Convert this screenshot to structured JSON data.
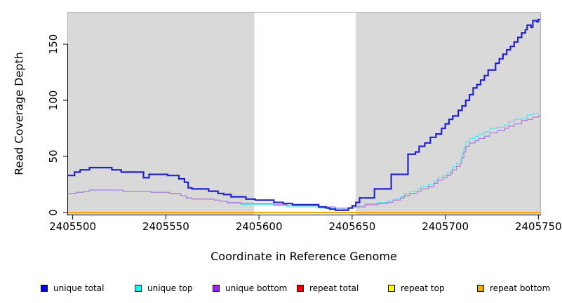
{
  "chart_data": {
    "type": "line",
    "step": true,
    "title": "",
    "xlabel": "Coordinate in Reference Genome",
    "ylabel": "Read Coverage Depth",
    "xlim": [
      2405497.5,
      2405751
    ],
    "ylim": [
      0,
      178
    ],
    "x_ticks": [
      2405500,
      2405550,
      2405600,
      2405650,
      2405700,
      2405750
    ],
    "x_tick_labels": [
      "2405500",
      "2405550",
      "2405600",
      "2405650",
      "2405700",
      "2405750"
    ],
    "y_ticks": [
      0,
      50,
      100,
      150
    ],
    "y_tick_labels": [
      "0",
      "50",
      "100",
      "150"
    ],
    "grid": false,
    "legend_position": "bottom",
    "panel_bg": "#d9d9d9",
    "panel_border": "#b3b3b3",
    "axis_color": "#000000",
    "highlight_band": {
      "x0": 2405597.5,
      "x1": 2405652,
      "color": "#ffffff"
    },
    "draw_order": [
      3,
      4,
      5,
      1,
      2,
      0
    ],
    "series": [
      {
        "name": "unique total",
        "color": "#2323cd",
        "width": 2.2,
        "points": [
          [
            2405497.5,
            33
          ],
          [
            2405501,
            36
          ],
          [
            2405504,
            38
          ],
          [
            2405509,
            40
          ],
          [
            2405521,
            38
          ],
          [
            2405526,
            36
          ],
          [
            2405538,
            31
          ],
          [
            2405541,
            34
          ],
          [
            2405551,
            33
          ],
          [
            2405557,
            30
          ],
          [
            2405560,
            27
          ],
          [
            2405562,
            22
          ],
          [
            2405564,
            21
          ],
          [
            2405573,
            19
          ],
          [
            2405578,
            17
          ],
          [
            2405581,
            16
          ],
          [
            2405585,
            14
          ],
          [
            2405593,
            12
          ],
          [
            2405598,
            11
          ],
          [
            2405608,
            9
          ],
          [
            2405613,
            8
          ],
          [
            2405618,
            7
          ],
          [
            2405632,
            5
          ],
          [
            2405636,
            4
          ],
          [
            2405638,
            3
          ],
          [
            2405641,
            2
          ],
          [
            2405648,
            4
          ],
          [
            2405650,
            6
          ],
          [
            2405652,
            9
          ],
          [
            2405654,
            13
          ],
          [
            2405662,
            21
          ],
          [
            2405671,
            34
          ],
          [
            2405680,
            52
          ],
          [
            2405684,
            54
          ],
          [
            2405686,
            59
          ],
          [
            2405689,
            62
          ],
          [
            2405692,
            67
          ],
          [
            2405695,
            70
          ],
          [
            2405698,
            75
          ],
          [
            2405700,
            79
          ],
          [
            2405702,
            83
          ],
          [
            2405704,
            86
          ],
          [
            2405707,
            91
          ],
          [
            2405709,
            95
          ],
          [
            2405711,
            100
          ],
          [
            2405713,
            105
          ],
          [
            2405715,
            111
          ],
          [
            2405717,
            114
          ],
          [
            2405719,
            118
          ],
          [
            2405721,
            122
          ],
          [
            2405723,
            127
          ],
          [
            2405727,
            133
          ],
          [
            2405729,
            137
          ],
          [
            2405731,
            141
          ],
          [
            2405733,
            145
          ],
          [
            2405735,
            148
          ],
          [
            2405737,
            152
          ],
          [
            2405739,
            156
          ],
          [
            2405741,
            160
          ],
          [
            2405743,
            163
          ],
          [
            2405744,
            167
          ],
          [
            2405746,
            165
          ],
          [
            2405747,
            171
          ],
          [
            2405749,
            170
          ],
          [
            2405750,
            172
          ]
        ]
      },
      {
        "name": "unique top",
        "color": "#5fe4e8",
        "width": 1.3,
        "points": [
          [
            2405497.5,
            17
          ],
          [
            2405502,
            18
          ],
          [
            2405506,
            19
          ],
          [
            2405509,
            20
          ],
          [
            2405527,
            19
          ],
          [
            2405542,
            18
          ],
          [
            2405552,
            17
          ],
          [
            2405558,
            15
          ],
          [
            2405561,
            13
          ],
          [
            2405564,
            12
          ],
          [
            2405576,
            11
          ],
          [
            2405579,
            10
          ],
          [
            2405583,
            8
          ],
          [
            2405590,
            7
          ],
          [
            2405608,
            6
          ],
          [
            2405615,
            5
          ],
          [
            2405632,
            4
          ],
          [
            2405641,
            3
          ],
          [
            2405648,
            4
          ],
          [
            2405651,
            5
          ],
          [
            2405653,
            6
          ],
          [
            2405657,
            8
          ],
          [
            2405664,
            9
          ],
          [
            2405669,
            10
          ],
          [
            2405672,
            12
          ],
          [
            2405676,
            14
          ],
          [
            2405678,
            17
          ],
          [
            2405681,
            19
          ],
          [
            2405685,
            21
          ],
          [
            2405687,
            23
          ],
          [
            2405691,
            25
          ],
          [
            2405694,
            28
          ],
          [
            2405696,
            31
          ],
          [
            2405699,
            33
          ],
          [
            2405701,
            35
          ],
          [
            2405703,
            38
          ],
          [
            2405704,
            41
          ],
          [
            2405706,
            44
          ],
          [
            2405708,
            47
          ],
          [
            2405709,
            53
          ],
          [
            2405710,
            58
          ],
          [
            2405711,
            63
          ],
          [
            2405713,
            66
          ],
          [
            2405716,
            68
          ],
          [
            2405718,
            70
          ],
          [
            2405721,
            72
          ],
          [
            2405724,
            75
          ],
          [
            2405728,
            76
          ],
          [
            2405732,
            78
          ],
          [
            2405734,
            81
          ],
          [
            2405737,
            83
          ],
          [
            2405741,
            84
          ],
          [
            2405744,
            87
          ],
          [
            2405747,
            88
          ]
        ]
      },
      {
        "name": "unique bottom",
        "color": "#b37fdd",
        "width": 1.3,
        "points": [
          [
            2405497.5,
            17
          ],
          [
            2405502,
            18
          ],
          [
            2405506,
            19
          ],
          [
            2405509,
            20
          ],
          [
            2405527,
            19
          ],
          [
            2405542,
            18
          ],
          [
            2405552,
            17
          ],
          [
            2405558,
            15
          ],
          [
            2405561,
            13
          ],
          [
            2405564,
            12
          ],
          [
            2405576,
            11
          ],
          [
            2405579,
            10
          ],
          [
            2405583,
            9
          ],
          [
            2405590,
            8
          ],
          [
            2405608,
            7
          ],
          [
            2405615,
            6
          ],
          [
            2405632,
            5
          ],
          [
            2405641,
            4
          ],
          [
            2405648,
            4
          ],
          [
            2405651,
            5
          ],
          [
            2405653,
            5
          ],
          [
            2405657,
            7
          ],
          [
            2405664,
            8
          ],
          [
            2405669,
            9
          ],
          [
            2405672,
            11
          ],
          [
            2405676,
            13
          ],
          [
            2405678,
            15
          ],
          [
            2405681,
            17
          ],
          [
            2405685,
            19
          ],
          [
            2405687,
            21
          ],
          [
            2405691,
            23
          ],
          [
            2405694,
            26
          ],
          [
            2405696,
            29
          ],
          [
            2405699,
            31
          ],
          [
            2405701,
            33
          ],
          [
            2405703,
            35
          ],
          [
            2405704,
            38
          ],
          [
            2405706,
            41
          ],
          [
            2405708,
            44
          ],
          [
            2405709,
            49
          ],
          [
            2405710,
            54
          ],
          [
            2405711,
            59
          ],
          [
            2405713,
            62
          ],
          [
            2405716,
            64
          ],
          [
            2405718,
            66
          ],
          [
            2405721,
            68
          ],
          [
            2405724,
            71
          ],
          [
            2405728,
            73
          ],
          [
            2405732,
            75
          ],
          [
            2405734,
            77
          ],
          [
            2405737,
            79
          ],
          [
            2405741,
            82
          ],
          [
            2405744,
            83
          ],
          [
            2405747,
            85
          ],
          [
            2405750,
            86
          ]
        ]
      },
      {
        "name": "repeat total",
        "color": "#dd0000",
        "width": 1.5,
        "points": [
          [
            2405497.5,
            0
          ],
          [
            2405751,
            0
          ]
        ]
      },
      {
        "name": "repeat top",
        "color": "#ffff00",
        "width": 1.5,
        "points": [
          [
            2405497.5,
            0
          ],
          [
            2405751,
            0
          ]
        ]
      },
      {
        "name": "repeat bottom",
        "color": "#ffa500",
        "width": 2,
        "points": [
          [
            2405497.5,
            0
          ],
          [
            2405751,
            0
          ]
        ]
      }
    ]
  },
  "legend": {
    "items": [
      {
        "label": "unique total",
        "color": "#0000ee"
      },
      {
        "label": "unique top",
        "color": "#00ffff"
      },
      {
        "label": "unique bottom",
        "color": "#a020f0"
      },
      {
        "label": "repeat total",
        "color": "#ee0000"
      },
      {
        "label": "repeat top",
        "color": "#ffff00"
      },
      {
        "label": "repeat bottom",
        "color": "#ffa500"
      }
    ]
  }
}
